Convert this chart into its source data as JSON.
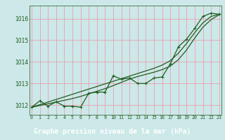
{
  "x": [
    0,
    1,
    2,
    3,
    4,
    5,
    6,
    7,
    8,
    9,
    10,
    11,
    12,
    13,
    14,
    15,
    16,
    17,
    18,
    19,
    20,
    21,
    22,
    23
  ],
  "y_data": [
    1011.9,
    1012.2,
    1011.95,
    1012.15,
    1011.95,
    1011.95,
    1011.9,
    1012.55,
    1012.6,
    1012.6,
    1013.35,
    1013.2,
    1013.25,
    1013.0,
    1013.0,
    1013.25,
    1013.3,
    1013.9,
    1014.7,
    1015.05,
    1015.55,
    1016.1,
    1016.25,
    1016.2
  ],
  "y_smooth1": [
    1011.9,
    1012.02,
    1012.14,
    1012.26,
    1012.38,
    1012.5,
    1012.62,
    1012.74,
    1012.86,
    1012.98,
    1013.1,
    1013.22,
    1013.34,
    1013.46,
    1013.58,
    1013.7,
    1013.85,
    1014.05,
    1014.4,
    1014.85,
    1015.35,
    1015.8,
    1016.1,
    1016.2
  ],
  "y_smooth2": [
    1011.9,
    1011.98,
    1012.06,
    1012.14,
    1012.22,
    1012.3,
    1012.4,
    1012.52,
    1012.64,
    1012.76,
    1012.9,
    1013.05,
    1013.2,
    1013.32,
    1013.42,
    1013.52,
    1013.64,
    1013.8,
    1014.1,
    1014.55,
    1015.1,
    1015.6,
    1015.95,
    1016.18
  ],
  "line_color": "#1f5c1f",
  "bg_color": "#cce8e8",
  "grid_color": "#e8a0b4",
  "label_color": "#1f5c1f",
  "footer_bg": "#1f5c1f",
  "footer_text": "#ffffff",
  "title": "Graphe pression niveau de la mer (hPa)",
  "yticks": [
    1012,
    1013,
    1014,
    1015,
    1016
  ],
  "xticks": [
    0,
    1,
    2,
    3,
    4,
    5,
    6,
    7,
    8,
    9,
    10,
    11,
    12,
    13,
    14,
    15,
    16,
    17,
    18,
    19,
    20,
    21,
    22,
    23
  ],
  "ylim": [
    1011.55,
    1016.6
  ],
  "xlim": [
    -0.3,
    23.3
  ]
}
